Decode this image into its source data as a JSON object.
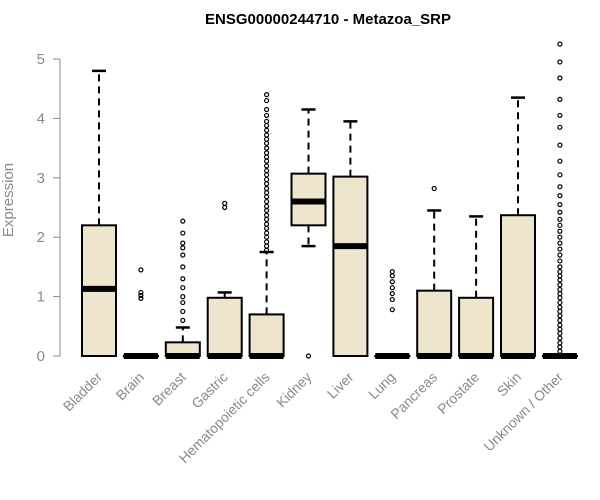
{
  "chart_data": {
    "type": "boxplot",
    "title": "ENSG00000244710 - Metazoa_SRP",
    "ylabel": "Expression",
    "xlabel": "",
    "ylim": [
      0,
      5
    ],
    "yticks": [
      0,
      1,
      2,
      3,
      4,
      5
    ],
    "box_fill": "#ede5cc",
    "categories": [
      "Bladder",
      "Brain",
      "Breast",
      "Gastric",
      "Hematopoietic cells",
      "Kidney",
      "Liver",
      "Lung",
      "Pancreas",
      "Prostate",
      "Skin",
      "Unknown / Other"
    ],
    "boxes": [
      {
        "category": "Bladder",
        "whisker_low": 0,
        "q1": 0,
        "median": 1.13,
        "q3": 2.2,
        "whisker_high": 4.8,
        "outliers": []
      },
      {
        "category": "Brain",
        "whisker_low": 0,
        "q1": 0,
        "median": 0,
        "q3": 0,
        "whisker_high": 0,
        "outliers": [
          1.45,
          1.07,
          1.02,
          0.97
        ]
      },
      {
        "category": "Breast",
        "whisker_low": 0,
        "q1": 0,
        "median": 0,
        "q3": 0.23,
        "whisker_high": 0.48,
        "outliers": [
          2.27,
          2.07,
          1.9,
          1.82,
          1.7,
          1.5,
          1.3,
          1.15,
          1.0,
          0.9,
          0.75,
          0.6
        ]
      },
      {
        "category": "Gastric",
        "whisker_low": 0,
        "q1": 0,
        "median": 0,
        "q3": 0.98,
        "whisker_high": 1.07,
        "outliers": [
          2.57,
          2.5
        ]
      },
      {
        "category": "Hematopoietic cells",
        "whisker_low": 0,
        "q1": 0,
        "median": 0,
        "q3": 0.7,
        "whisker_high": 1.75,
        "outliers": [
          4.4,
          4.3,
          4.15,
          4.05,
          3.95,
          3.88,
          3.8,
          3.72,
          3.65,
          3.58,
          3.5,
          3.42,
          3.35,
          3.28,
          3.2,
          3.12,
          3.05,
          2.97,
          2.9,
          2.82,
          2.75,
          2.68,
          2.6,
          2.52,
          2.45,
          2.37,
          2.3,
          2.22,
          2.15,
          2.07,
          2.0,
          1.92,
          1.85,
          1.78
        ]
      },
      {
        "category": "Kidney",
        "whisker_low": 1.85,
        "q1": 2.2,
        "median": 2.6,
        "q3": 3.07,
        "whisker_high": 4.15,
        "outliers": [
          0
        ]
      },
      {
        "category": "Liver",
        "whisker_low": 0,
        "q1": 0,
        "median": 1.85,
        "q3": 3.02,
        "whisker_high": 3.95,
        "outliers": []
      },
      {
        "category": "Lung",
        "whisker_low": 0,
        "q1": 0,
        "median": 0,
        "q3": 0,
        "whisker_high": 0,
        "outliers": [
          1.42,
          1.35,
          1.25,
          1.15,
          1.05,
          0.95,
          0.78
        ]
      },
      {
        "category": "Pancreas",
        "whisker_low": 0,
        "q1": 0,
        "median": 0,
        "q3": 1.1,
        "whisker_high": 2.45,
        "outliers": [
          2.82
        ]
      },
      {
        "category": "Prostate",
        "whisker_low": 0,
        "q1": 0,
        "median": 0,
        "q3": 0.98,
        "whisker_high": 2.35,
        "outliers": []
      },
      {
        "category": "Skin",
        "whisker_low": 0,
        "q1": 0,
        "median": 0,
        "q3": 2.37,
        "whisker_high": 4.35,
        "outliers": []
      },
      {
        "category": "Unknown / Other",
        "whisker_low": 0,
        "q1": 0,
        "median": 0,
        "q3": 0,
        "whisker_high": 0,
        "outliers": [
          5.25,
          4.95,
          4.68,
          4.32,
          4.05,
          3.85,
          3.55,
          3.28,
          3.05,
          2.85,
          2.7,
          2.55,
          2.42,
          2.3,
          2.2,
          2.1,
          2.0,
          1.9,
          1.8,
          1.7,
          1.6,
          1.5,
          1.42,
          1.35,
          1.28,
          1.2,
          1.12,
          1.05,
          0.98,
          0.9,
          0.82,
          0.75,
          0.68,
          0.6,
          0.52,
          0.45,
          0.38,
          0.3,
          0.22,
          0.15,
          0.08
        ]
      }
    ]
  }
}
